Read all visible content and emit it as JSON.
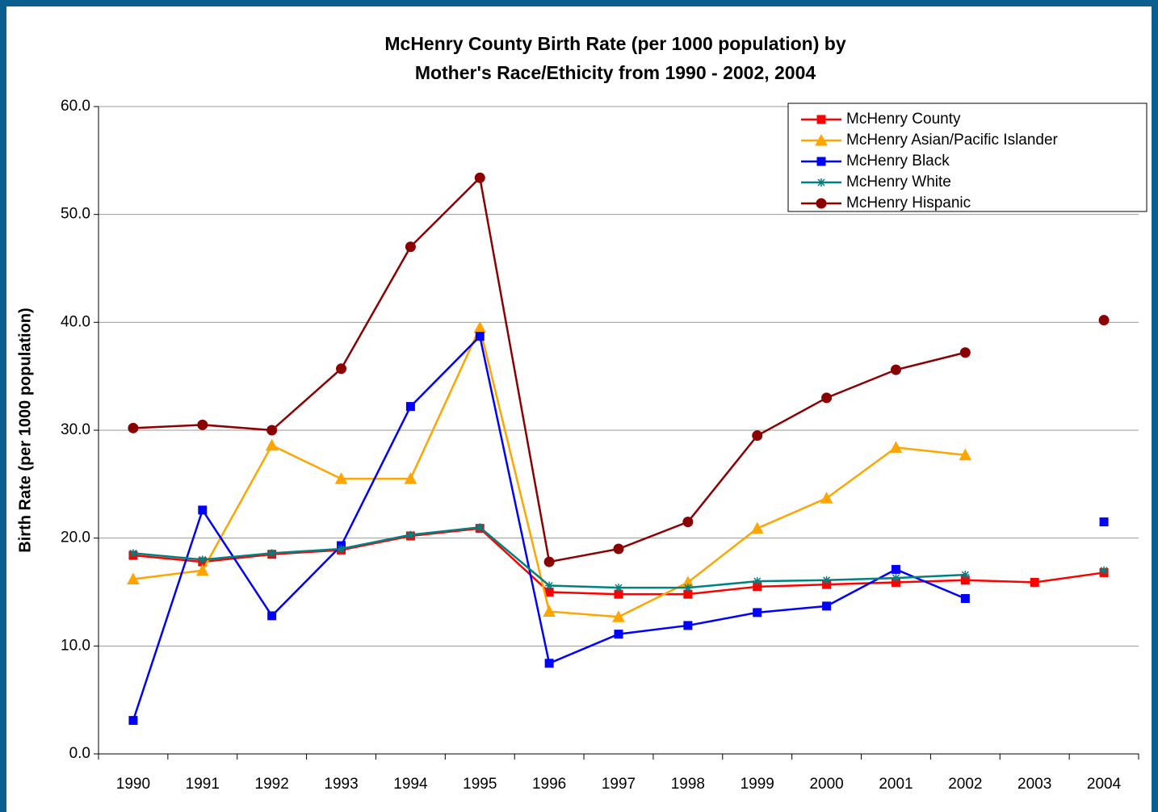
{
  "chart_data": {
    "type": "line",
    "title": [
      "McHenry County Birth Rate (per 1000 population) by",
      "Mother's Race/Ethicity from 1990 - 2002, 2004"
    ],
    "y_label": "Birth Rate (per 1000 population)",
    "categories": [
      "1990",
      "1991",
      "1992",
      "1993",
      "1994",
      "1995",
      "1996",
      "1997",
      "1998",
      "1999",
      "2000",
      "2001",
      "2002",
      "2003",
      "2004"
    ],
    "series": [
      {
        "name": "McHenry County",
        "color": "#ff0000",
        "marker": "square",
        "values": [
          18.4,
          17.8,
          18.5,
          18.9,
          20.2,
          20.9,
          15.0,
          14.8,
          14.8,
          15.5,
          15.7,
          15.9,
          16.1,
          15.9,
          16.8
        ]
      },
      {
        "name": "McHenry Asian/Pacific Islander",
        "color": "#ffa500",
        "marker": "triangle",
        "values": [
          16.2,
          17.0,
          28.6,
          25.5,
          25.5,
          39.5,
          13.2,
          12.7,
          15.9,
          20.9,
          23.7,
          28.4,
          27.7,
          null,
          null
        ]
      },
      {
        "name": "McHenry Black",
        "color": "#0000ff",
        "marker": "square",
        "values": [
          3.1,
          22.6,
          12.8,
          19.3,
          32.2,
          38.7,
          8.4,
          11.1,
          11.9,
          13.1,
          13.7,
          17.1,
          14.4,
          null,
          21.5
        ]
      },
      {
        "name": "McHenry White",
        "color": "#008080",
        "marker": "star",
        "values": [
          18.6,
          18.0,
          18.6,
          19.0,
          20.3,
          21.0,
          15.6,
          15.4,
          15.4,
          16.0,
          16.1,
          16.3,
          16.6,
          null,
          17.0
        ]
      },
      {
        "name": "McHenry Hispanic",
        "color": "#8b0000",
        "marker": "circle",
        "values": [
          30.2,
          30.5,
          30.0,
          35.7,
          47.0,
          53.4,
          17.8,
          19.0,
          21.5,
          29.5,
          33.0,
          35.6,
          37.2,
          null,
          40.2
        ]
      }
    ],
    "ylim": [
      0,
      60
    ],
    "yticks": [
      {
        "value": 0,
        "label": "0.0"
      },
      {
        "value": 10,
        "label": "10.0"
      },
      {
        "value": 20,
        "label": "20.0"
      },
      {
        "value": 30,
        "label": "30.0"
      },
      {
        "value": 40,
        "label": "40.0"
      },
      {
        "value": 50,
        "label": "50.0"
      },
      {
        "value": 60,
        "label": "60.0"
      }
    ],
    "grid": true,
    "legend": "top-right"
  }
}
